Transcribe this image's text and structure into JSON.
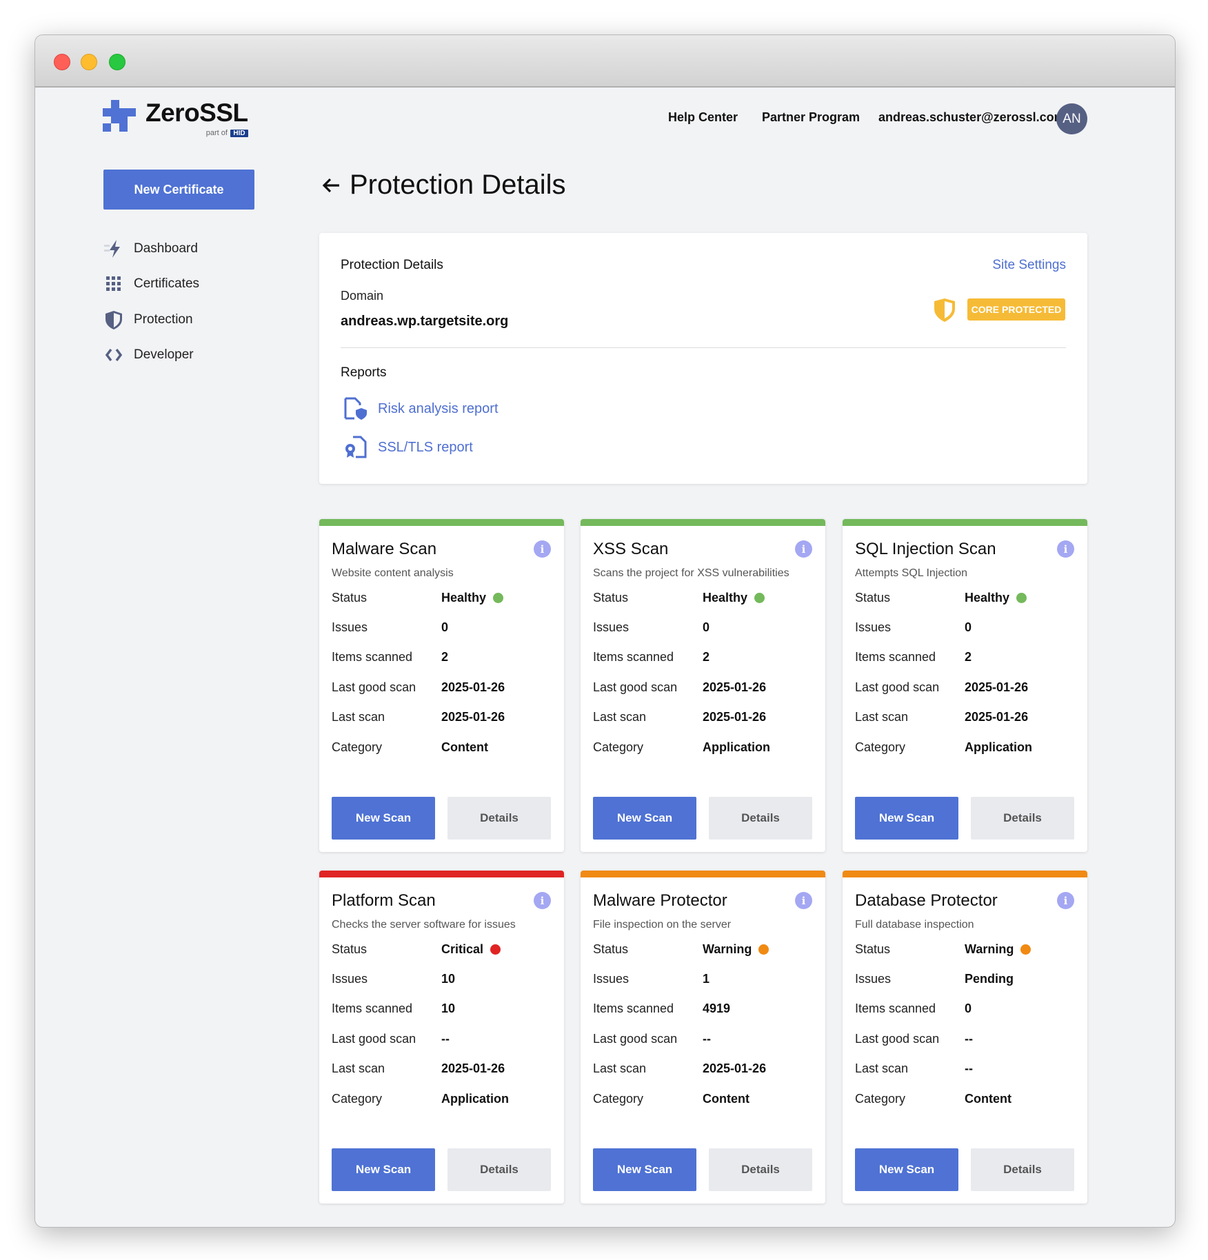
{
  "brand": {
    "name": "ZeroSSL",
    "part_of": "part of",
    "parent": "HID",
    "accent": "#4f72d4"
  },
  "topnav": {
    "help": "Help Center",
    "partner": "Partner Program",
    "email": "andreas.schuster@zerossl.com",
    "avatar": "AN"
  },
  "sidebar": {
    "new_certificate": "New Certificate",
    "items": [
      {
        "label": "Dashboard",
        "icon": "lightning-icon"
      },
      {
        "label": "Certificates",
        "icon": "grid-icon"
      },
      {
        "label": "Protection",
        "icon": "shield-icon"
      },
      {
        "label": "Developer",
        "icon": "code-icon"
      }
    ]
  },
  "page": {
    "title": "Protection Details"
  },
  "details": {
    "heading": "Protection Details",
    "site_settings": "Site Settings",
    "domain_label": "Domain",
    "domain": "andreas.wp.targetsite.org",
    "badge": "CORE PROTECTED",
    "badge_color": "#f6bb36",
    "reports_heading": "Reports",
    "reports": [
      {
        "label": "Risk analysis report",
        "icon": "file-shield-icon"
      },
      {
        "label": "SSL/TLS report",
        "icon": "file-certificate-icon"
      }
    ]
  },
  "labels": {
    "status": "Status",
    "issues": "Issues",
    "items": "Items scanned",
    "last_good": "Last good scan",
    "last": "Last scan",
    "category": "Category",
    "new_scan": "New Scan",
    "details": "Details"
  },
  "status_colors": {
    "Healthy": "#74b95b",
    "Critical": "#e02424",
    "Warning": "#f08a12"
  },
  "scans": [
    {
      "title": "Malware Scan",
      "subtitle": "Website content analysis",
      "status": "Healthy",
      "issues": "0",
      "items": "2",
      "last_good": "2025-01-26",
      "last": "2025-01-26",
      "category": "Content"
    },
    {
      "title": "XSS Scan",
      "subtitle": "Scans the project for XSS vulnerabilities",
      "status": "Healthy",
      "issues": "0",
      "items": "2",
      "last_good": "2025-01-26",
      "last": "2025-01-26",
      "category": "Application"
    },
    {
      "title": "SQL Injection Scan",
      "subtitle": "Attempts SQL Injection",
      "status": "Healthy",
      "issues": "0",
      "items": "2",
      "last_good": "2025-01-26",
      "last": "2025-01-26",
      "category": "Application"
    },
    {
      "title": "Platform Scan",
      "subtitle": "Checks the server software for issues",
      "status": "Critical",
      "issues": "10",
      "items": "10",
      "last_good": "--",
      "last": "2025-01-26",
      "category": "Application"
    },
    {
      "title": "Malware Protector",
      "subtitle": "File inspection on the server",
      "status": "Warning",
      "issues": "1",
      "items": "4919",
      "last_good": "--",
      "last": "2025-01-26",
      "category": "Content"
    },
    {
      "title": "Database Protector",
      "subtitle": "Full database inspection",
      "status": "Warning",
      "issues": "Pending",
      "items": "0",
      "last_good": "--",
      "last": "--",
      "category": "Content"
    }
  ]
}
